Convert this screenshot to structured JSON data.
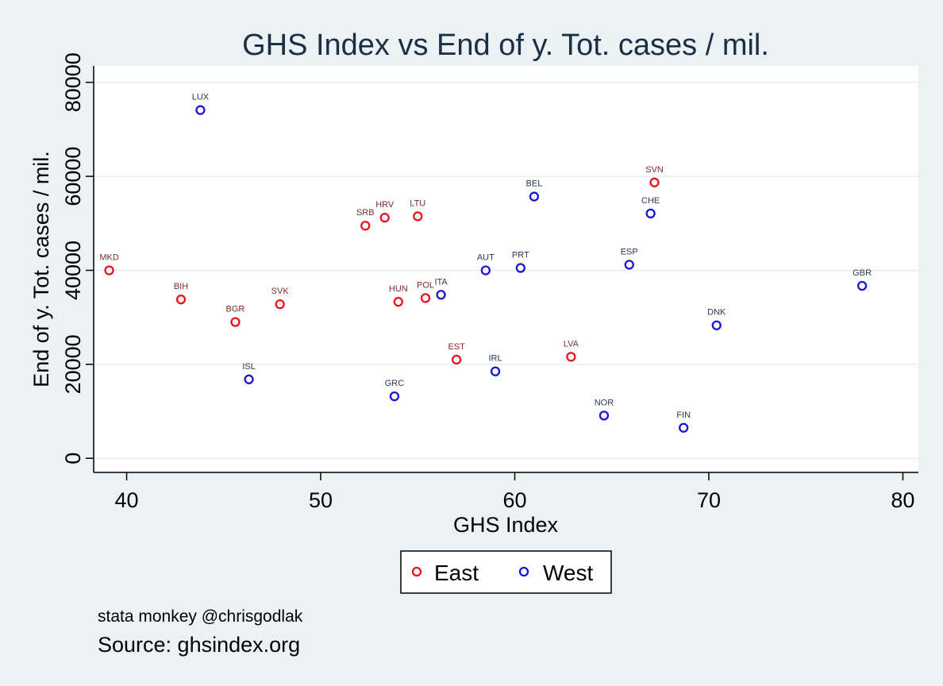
{
  "chart_data": {
    "type": "scatter",
    "title": "GHS Index vs End of y. Tot. cases / mil.",
    "xlabel": "GHS Index",
    "ylabel": "End of y. Tot. cases / mil.",
    "xlim": [
      38.3,
      80.8
    ],
    "ylim": [
      -3000,
      83500
    ],
    "xticks": [
      40,
      50,
      60,
      70,
      80
    ],
    "yticks": [
      0,
      20000,
      40000,
      60000,
      80000
    ],
    "grid": true,
    "legend_position": "bottom",
    "series": [
      {
        "name": "East",
        "color": "#e8121f",
        "label_color": "#7b2d2d",
        "points": [
          {
            "label": "MKD",
            "x": 39.1,
            "y": 40000
          },
          {
            "label": "BIH",
            "x": 42.8,
            "y": 33800
          },
          {
            "label": "BGR",
            "x": 45.6,
            "y": 29000
          },
          {
            "label": "SVK",
            "x": 47.9,
            "y": 32800
          },
          {
            "label": "SRB",
            "x": 52.3,
            "y": 49500
          },
          {
            "label": "HRV",
            "x": 53.3,
            "y": 51200
          },
          {
            "label": "LTU",
            "x": 55.0,
            "y": 51500
          },
          {
            "label": "HUN",
            "x": 54.0,
            "y": 33300
          },
          {
            "label": "POL",
            "x": 55.4,
            "y": 34100
          },
          {
            "label": "EST",
            "x": 57.0,
            "y": 21000
          },
          {
            "label": "LVA",
            "x": 62.9,
            "y": 21600
          },
          {
            "label": "SVN",
            "x": 67.2,
            "y": 58700
          }
        ]
      },
      {
        "name": "West",
        "color": "#1a14d8",
        "label_color": "#2b3a55",
        "points": [
          {
            "label": "LUX",
            "x": 43.8,
            "y": 74100
          },
          {
            "label": "ISL",
            "x": 46.3,
            "y": 16800
          },
          {
            "label": "GRC",
            "x": 53.8,
            "y": 13200
          },
          {
            "label": "ITA",
            "x": 56.2,
            "y": 34800
          },
          {
            "label": "AUT",
            "x": 58.5,
            "y": 40000
          },
          {
            "label": "IRL",
            "x": 59.0,
            "y": 18500
          },
          {
            "label": "PRT",
            "x": 60.3,
            "y": 40500
          },
          {
            "label": "BEL",
            "x": 61.0,
            "y": 55700
          },
          {
            "label": "NOR",
            "x": 64.6,
            "y": 9100
          },
          {
            "label": "ESP",
            "x": 65.9,
            "y": 41200
          },
          {
            "label": "CHE",
            "x": 67.0,
            "y": 52100
          },
          {
            "label": "FIN",
            "x": 68.7,
            "y": 6500
          },
          {
            "label": "DNK",
            "x": 70.4,
            "y": 28300
          },
          {
            "label": "GBR",
            "x": 77.9,
            "y": 36700
          }
        ]
      }
    ],
    "notes": {
      "credit": "stata monkey @chrisgodlak",
      "source": "Source: ghsindex.org"
    }
  }
}
